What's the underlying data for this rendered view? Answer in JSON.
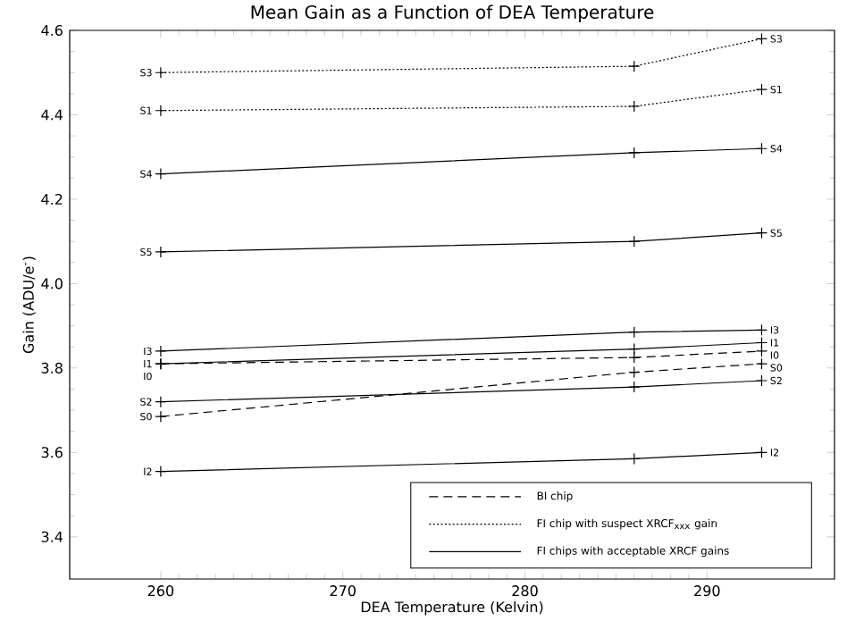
{
  "chart_data": {
    "type": "line",
    "title": "Mean Gain as a Function of DEA Temperature",
    "xlabel": "DEA Temperature (Kelvin)",
    "ylabel": "Gain (ADU/e$^{-}$)",
    "x": [
      260,
      286,
      293
    ],
    "xlim": [
      255,
      297
    ],
    "xticks": [
      260,
      270,
      280,
      290
    ],
    "ylim": [
      3.3,
      4.6
    ],
    "yticks": [
      3.4,
      3.6,
      3.8,
      {
        "value": 4.0,
        "label": "4.0"
      },
      4.2,
      4.4,
      4.6
    ],
    "marker": "cross",
    "grid": false,
    "series": [
      {
        "name": "S3",
        "color": "#000000",
        "line_style": "dotted",
        "values": [
          4.5,
          4.515,
          4.58
        ]
      },
      {
        "name": "S1",
        "color": "#000000",
        "line_style": "dotted",
        "values": [
          4.41,
          4.42,
          4.46
        ]
      },
      {
        "name": "S4",
        "color": "#000000",
        "line_style": "solid",
        "values": [
          4.26,
          4.31,
          4.32
        ]
      },
      {
        "name": "S5",
        "color": "#000000",
        "line_style": "solid",
        "values": [
          4.075,
          4.1,
          4.12
        ]
      },
      {
        "name": "I3",
        "color": "#000000",
        "line_style": "solid",
        "values": [
          3.84,
          3.885,
          3.89
        ]
      },
      {
        "name": "I1",
        "color": "#000000",
        "line_style": "solid",
        "values": [
          3.81,
          3.845,
          3.86
        ]
      },
      {
        "name": "I0",
        "color": "#000000",
        "line_style": "dashed",
        "values": [
          3.81,
          3.825,
          3.84
        ]
      },
      {
        "name": "S0",
        "color": "#000000",
        "line_style": "dashed",
        "values": [
          3.685,
          3.79,
          3.81
        ]
      },
      {
        "name": "S2",
        "color": "#000000",
        "line_style": "solid",
        "values": [
          3.72,
          3.755,
          3.77
        ]
      },
      {
        "name": "I2",
        "color": "#000000",
        "line_style": "solid",
        "values": [
          3.555,
          3.585,
          3.6
        ]
      }
    ],
    "annotations": [
      "BI chip",
      "FI chip with suspect XRCF$_{xxx}$ gain",
      "FI chips with acceptable XRCF gains"
    ]
  }
}
